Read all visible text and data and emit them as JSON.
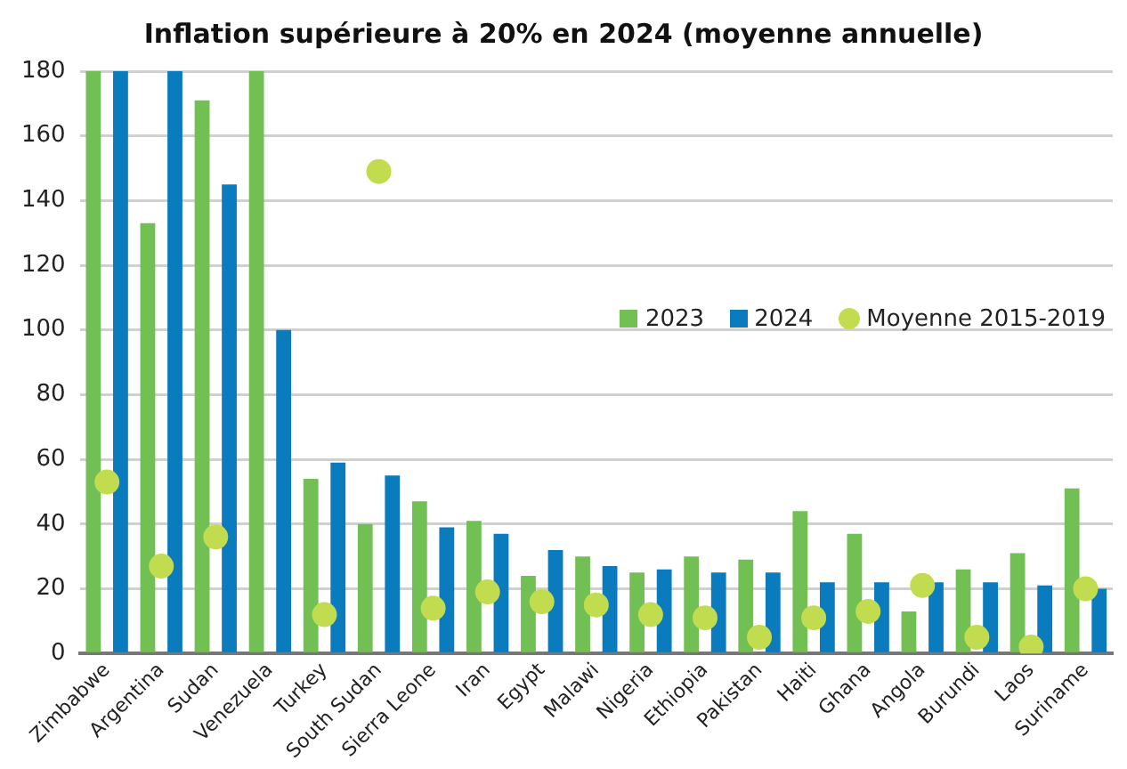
{
  "chart_data": {
    "type": "bar",
    "title": "Inflation supérieure à 20% en 2024 (moyenne annuelle)",
    "categories": [
      "Zimbabwe",
      "Argentina",
      "Sudan",
      "Venezuela",
      "Turkey",
      "South Sudan",
      "Sierra Leone",
      "Iran",
      "Egypt",
      "Malawi",
      "Nigeria",
      "Ethiopia",
      "Pakistan",
      "Haiti",
      "Ghana",
      "Angola",
      "Burundi",
      "Laos",
      "Suriname"
    ],
    "series": [
      {
        "name": "2023",
        "color": "#72bf54",
        "values": [
          180,
          133,
          171,
          180,
          54,
          40,
          47,
          41,
          24,
          30,
          25,
          30,
          29,
          44,
          37,
          13,
          26,
          31,
          51
        ]
      },
      {
        "name": "2024",
        "color": "#0a7bbd",
        "values": [
          180,
          180,
          145,
          100,
          59,
          55,
          39,
          37,
          32,
          27,
          26,
          25,
          25,
          22,
          22,
          22,
          22,
          21,
          20
        ]
      },
      {
        "name": "Moyenne 2015-2019",
        "type": "scatter",
        "color": "#c2dc50",
        "marker": "circle",
        "x": [
          "Zimbabwe",
          "Argentina",
          "Sudan",
          "Venezuela",
          "Turkey",
          "South Sudan",
          "Sierra Leone",
          "Iran",
          "Egypt",
          "Malawi",
          "Nigeria",
          "Ethiopia",
          "Pakistan",
          "Haiti",
          "Ghana",
          "Angola",
          "Burundi",
          "Laos",
          "Suriname"
        ],
        "values": [
          53,
          27,
          36,
          null,
          12,
          149,
          14,
          19,
          16,
          15,
          12,
          11,
          5,
          11,
          13,
          21,
          5,
          2,
          20
        ]
      }
    ],
    "ylim": [
      0,
      180
    ],
    "yticks": [
      0,
      20,
      40,
      60,
      80,
      100,
      120,
      140,
      160,
      180
    ],
    "grid": "y",
    "legend": "right"
  }
}
